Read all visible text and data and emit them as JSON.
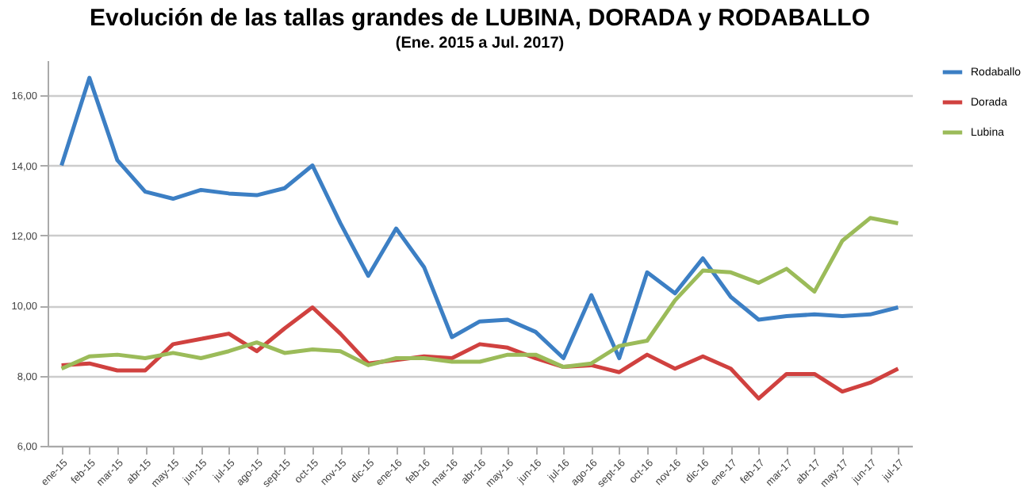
{
  "chart_data": {
    "type": "line",
    "title": "Evolución de las tallas grandes de LUBINA, DORADA y RODABALLO",
    "subtitle": "(Ene. 2015 a Jul. 2017)",
    "categories": [
      "ene-15",
      "feb-15",
      "mar-15",
      "abr-15",
      "may-15",
      "jun-15",
      "jul-15",
      "ago-15",
      "sept-15",
      "oct-15",
      "nov-15",
      "dic-15",
      "ene-16",
      "feb-16",
      "mar-16",
      "abr-16",
      "may-16",
      "jun-16",
      "jul-16",
      "ago-16",
      "sept-16",
      "oct-16",
      "nov-16",
      "dic-16",
      "ene-17",
      "feb-17",
      "mar-17",
      "abr-17",
      "may-17",
      "jun-17",
      "jul-17"
    ],
    "series": [
      {
        "name": "Rodaballo",
        "color": "#3c7fc4",
        "values": [
          14.0,
          16.5,
          14.15,
          13.25,
          13.05,
          13.3,
          13.2,
          13.15,
          13.35,
          14.0,
          12.35,
          10.85,
          12.2,
          11.1,
          9.1,
          9.55,
          9.6,
          9.25,
          8.5,
          10.3,
          8.5,
          10.95,
          10.35,
          11.35,
          10.25,
          9.6,
          9.7,
          9.75,
          9.7,
          9.75,
          9.95
        ]
      },
      {
        "name": "Dorada",
        "color": "#d0413f",
        "values": [
          8.3,
          8.35,
          8.15,
          8.15,
          8.9,
          9.05,
          9.2,
          8.7,
          9.35,
          9.95,
          9.2,
          8.35,
          8.45,
          8.55,
          8.5,
          8.9,
          8.8,
          8.5,
          8.25,
          8.3,
          8.1,
          8.6,
          8.2,
          8.55,
          8.2,
          7.35,
          8.05,
          8.05,
          7.55,
          7.8,
          8.2
        ]
      },
      {
        "name": "Lubina",
        "color": "#9bbb59",
        "values": [
          8.2,
          8.55,
          8.6,
          8.5,
          8.65,
          8.5,
          8.7,
          8.95,
          8.65,
          8.75,
          8.7,
          8.3,
          8.5,
          8.5,
          8.4,
          8.4,
          8.6,
          8.6,
          8.25,
          8.35,
          8.85,
          9.0,
          10.15,
          11.0,
          10.95,
          10.65,
          11.05,
          10.4,
          11.85,
          12.5,
          12.35
        ]
      }
    ],
    "ylim": [
      6,
      17
    ],
    "yticks": [
      {
        "value": 6,
        "label": "6,00"
      },
      {
        "value": 8,
        "label": "8,00"
      },
      {
        "value": 10,
        "label": "10,00"
      },
      {
        "value": 12,
        "label": "12,00"
      },
      {
        "value": 14,
        "label": "14,00"
      },
      {
        "value": 16,
        "label": "16,00"
      }
    ],
    "grid": "y",
    "legend": "right",
    "marker": "none",
    "line_style": "solid"
  }
}
